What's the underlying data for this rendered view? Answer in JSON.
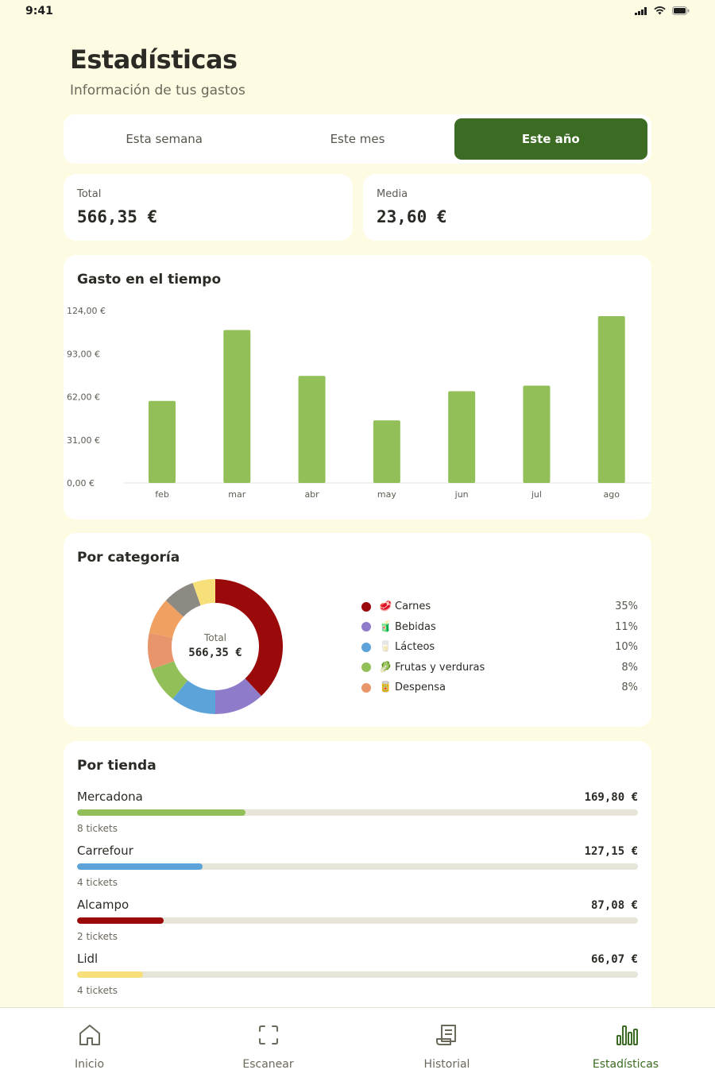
{
  "status_bar": {
    "time": "9:41"
  },
  "header": {
    "title": "Estadísticas",
    "subtitle": "Información de tus gastos"
  },
  "period_tabs": [
    {
      "label": "Esta semana",
      "active": false
    },
    {
      "label": "Este mes",
      "active": false
    },
    {
      "label": "Este año",
      "active": true
    }
  ],
  "summary": {
    "total": {
      "label": "Total",
      "value": "566,35 €"
    },
    "average": {
      "label": "Media",
      "value": "23,60 €"
    }
  },
  "time_chart": {
    "title": "Gasto en el tiempo"
  },
  "chart_data": {
    "type": "bar",
    "categories": [
      "feb",
      "mar",
      "abr",
      "may",
      "jun",
      "jul",
      "ago"
    ],
    "values": [
      59,
      110,
      77,
      45,
      66,
      70,
      120
    ],
    "ylim": [
      0,
      124
    ],
    "yticks": [
      0,
      31,
      62,
      93,
      124
    ],
    "ytick_labels": [
      "0,00 €",
      "31,00 €",
      "62,00 €",
      "93,00 €",
      "124,00 €"
    ],
    "grid": false,
    "color": "#93BF59"
  },
  "category_card": {
    "title": "Por categoría",
    "center_label": "Total",
    "center_value": "566,35 €",
    "slices": [
      {
        "value": 35,
        "color": "#9A0A0A"
      },
      {
        "value": 11,
        "color": "#8E7BC9"
      },
      {
        "value": 10,
        "color": "#5BA3D9"
      },
      {
        "value": 8,
        "color": "#93BF59"
      },
      {
        "value": 8,
        "color": "#E8956C"
      },
      {
        "value": 8,
        "color": "#F0A060"
      },
      {
        "value": 7,
        "color": "#8C8A83"
      },
      {
        "value": 5,
        "color": "#F7E07A"
      }
    ],
    "legend": [
      {
        "emoji": "🥩",
        "name": "Carnes",
        "pct": "35%",
        "color": "#9A0A0A"
      },
      {
        "emoji": "🧃",
        "name": "Bebidas",
        "pct": "11%",
        "color": "#8E7BC9"
      },
      {
        "emoji": "🥛",
        "name": "Lácteos",
        "pct": "10%",
        "color": "#5BA3D9"
      },
      {
        "emoji": "🥬",
        "name": "Frutas y verduras",
        "pct": "8%",
        "color": "#93BF59"
      },
      {
        "emoji": "🥫",
        "name": "Despensa",
        "pct": "8%",
        "color": "#E8956C"
      }
    ]
  },
  "store_card": {
    "title": "Por tienda",
    "stores": [
      {
        "name": "Mercadona",
        "amount": "169,80 €",
        "tickets": "8 tickets",
        "fraction": 0.3,
        "color": "#93BF59"
      },
      {
        "name": "Carrefour",
        "amount": "127,15 €",
        "tickets": "4 tickets",
        "fraction": 0.224,
        "color": "#5BA3D9"
      },
      {
        "name": "Alcampo",
        "amount": "87,08 €",
        "tickets": "2 tickets",
        "fraction": 0.154,
        "color": "#9A0A0A"
      },
      {
        "name": "Lidl",
        "amount": "66,07 €",
        "tickets": "4 tickets",
        "fraction": 0.117,
        "color": "#F7E07A"
      }
    ]
  },
  "tabbar": [
    {
      "label": "Inicio",
      "icon": "home-icon",
      "active": false
    },
    {
      "label": "Escanear",
      "icon": "scan-icon",
      "active": false
    },
    {
      "label": "Historial",
      "icon": "receipt-icon",
      "active": false
    },
    {
      "label": "Estadísticas",
      "icon": "stats-icon",
      "active": true
    }
  ]
}
